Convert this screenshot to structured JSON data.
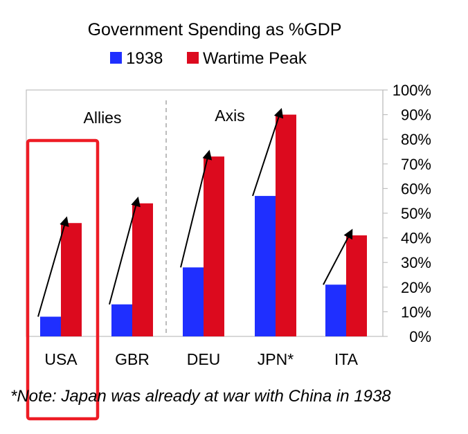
{
  "chart_data": {
    "type": "bar",
    "title": "Government Spending as %GDP",
    "categories": [
      "USA",
      "GBR",
      "DEU",
      "JPN*",
      "ITA"
    ],
    "series": [
      {
        "name": "1938",
        "color": "#1f2fff",
        "values": [
          8,
          13,
          28,
          57,
          21
        ]
      },
      {
        "name": "Wartime Peak",
        "color": "#dc0a1e",
        "values": [
          46,
          54,
          73,
          90,
          41
        ]
      }
    ],
    "ylim": [
      0,
      100
    ],
    "y_ticks": [
      "0%",
      "10%",
      "20%",
      "30%",
      "40%",
      "50%",
      "60%",
      "70%",
      "80%",
      "90%",
      "100%"
    ],
    "y_axis_side": "right",
    "groups": [
      {
        "label": "Allies",
        "categories": [
          "USA",
          "GBR"
        ]
      },
      {
        "label": "Axis",
        "categories": [
          "DEU",
          "JPN*",
          "ITA"
        ]
      }
    ],
    "arrows": "from each 1938 bar to its Wartime Peak bar",
    "highlight": {
      "category": "USA",
      "color": "#ee1c25"
    },
    "legend_position": "top-center",
    "grid": false,
    "footnote": "*Note: Japan was already at war with China in 1938"
  }
}
